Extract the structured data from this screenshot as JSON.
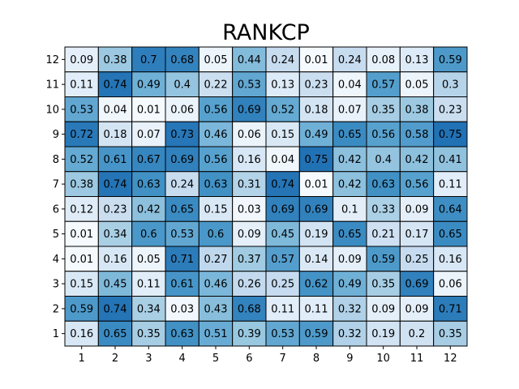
{
  "chart_data": {
    "type": "heatmap",
    "title": "RANKCP",
    "xlabel": "",
    "ylabel": "",
    "x_ticks": [
      "1",
      "2",
      "3",
      "4",
      "5",
      "6",
      "7",
      "8",
      "9",
      "10",
      "11",
      "12"
    ],
    "y_ticks": [
      "12",
      "11",
      "10",
      "9",
      "8",
      "7",
      "6",
      "5",
      "4",
      "3",
      "2",
      "1"
    ],
    "value_range": [
      0,
      1
    ],
    "colormap": "Blues",
    "grid": true,
    "values": [
      [
        0.09,
        0.38,
        0.7,
        0.68,
        0.05,
        0.44,
        0.24,
        0.01,
        0.24,
        0.08,
        0.13,
        0.59
      ],
      [
        0.11,
        0.74,
        0.49,
        0.4,
        0.22,
        0.53,
        0.13,
        0.23,
        0.04,
        0.57,
        0.05,
        0.3
      ],
      [
        0.53,
        0.04,
        0.01,
        0.06,
        0.56,
        0.69,
        0.52,
        0.18,
        0.07,
        0.35,
        0.38,
        0.23
      ],
      [
        0.72,
        0.18,
        0.07,
        0.73,
        0.46,
        0.06,
        0.15,
        0.49,
        0.65,
        0.56,
        0.58,
        0.75
      ],
      [
        0.52,
        0.61,
        0.67,
        0.69,
        0.56,
        0.16,
        0.04,
        0.75,
        0.42,
        0.4,
        0.42,
        0.41
      ],
      [
        0.38,
        0.74,
        0.63,
        0.24,
        0.63,
        0.31,
        0.74,
        0.01,
        0.42,
        0.63,
        0.56,
        0.11
      ],
      [
        0.12,
        0.23,
        0.42,
        0.65,
        0.15,
        0.03,
        0.69,
        0.69,
        0.1,
        0.33,
        0.09,
        0.64
      ],
      [
        0.01,
        0.34,
        0.6,
        0.53,
        0.6,
        0.09,
        0.45,
        0.19,
        0.65,
        0.21,
        0.17,
        0.65
      ],
      [
        0.01,
        0.16,
        0.05,
        0.71,
        0.27,
        0.37,
        0.57,
        0.14,
        0.09,
        0.59,
        0.25,
        0.16
      ],
      [
        0.15,
        0.45,
        0.11,
        0.61,
        0.46,
        0.26,
        0.25,
        0.62,
        0.49,
        0.35,
        0.69,
        0.06
      ],
      [
        0.59,
        0.74,
        0.34,
        0.03,
        0.43,
        0.68,
        0.11,
        0.11,
        0.32,
        0.09,
        0.09,
        0.71
      ],
      [
        0.16,
        0.65,
        0.35,
        0.63,
        0.51,
        0.39,
        0.53,
        0.59,
        0.32,
        0.19,
        0.2,
        0.35
      ]
    ]
  }
}
